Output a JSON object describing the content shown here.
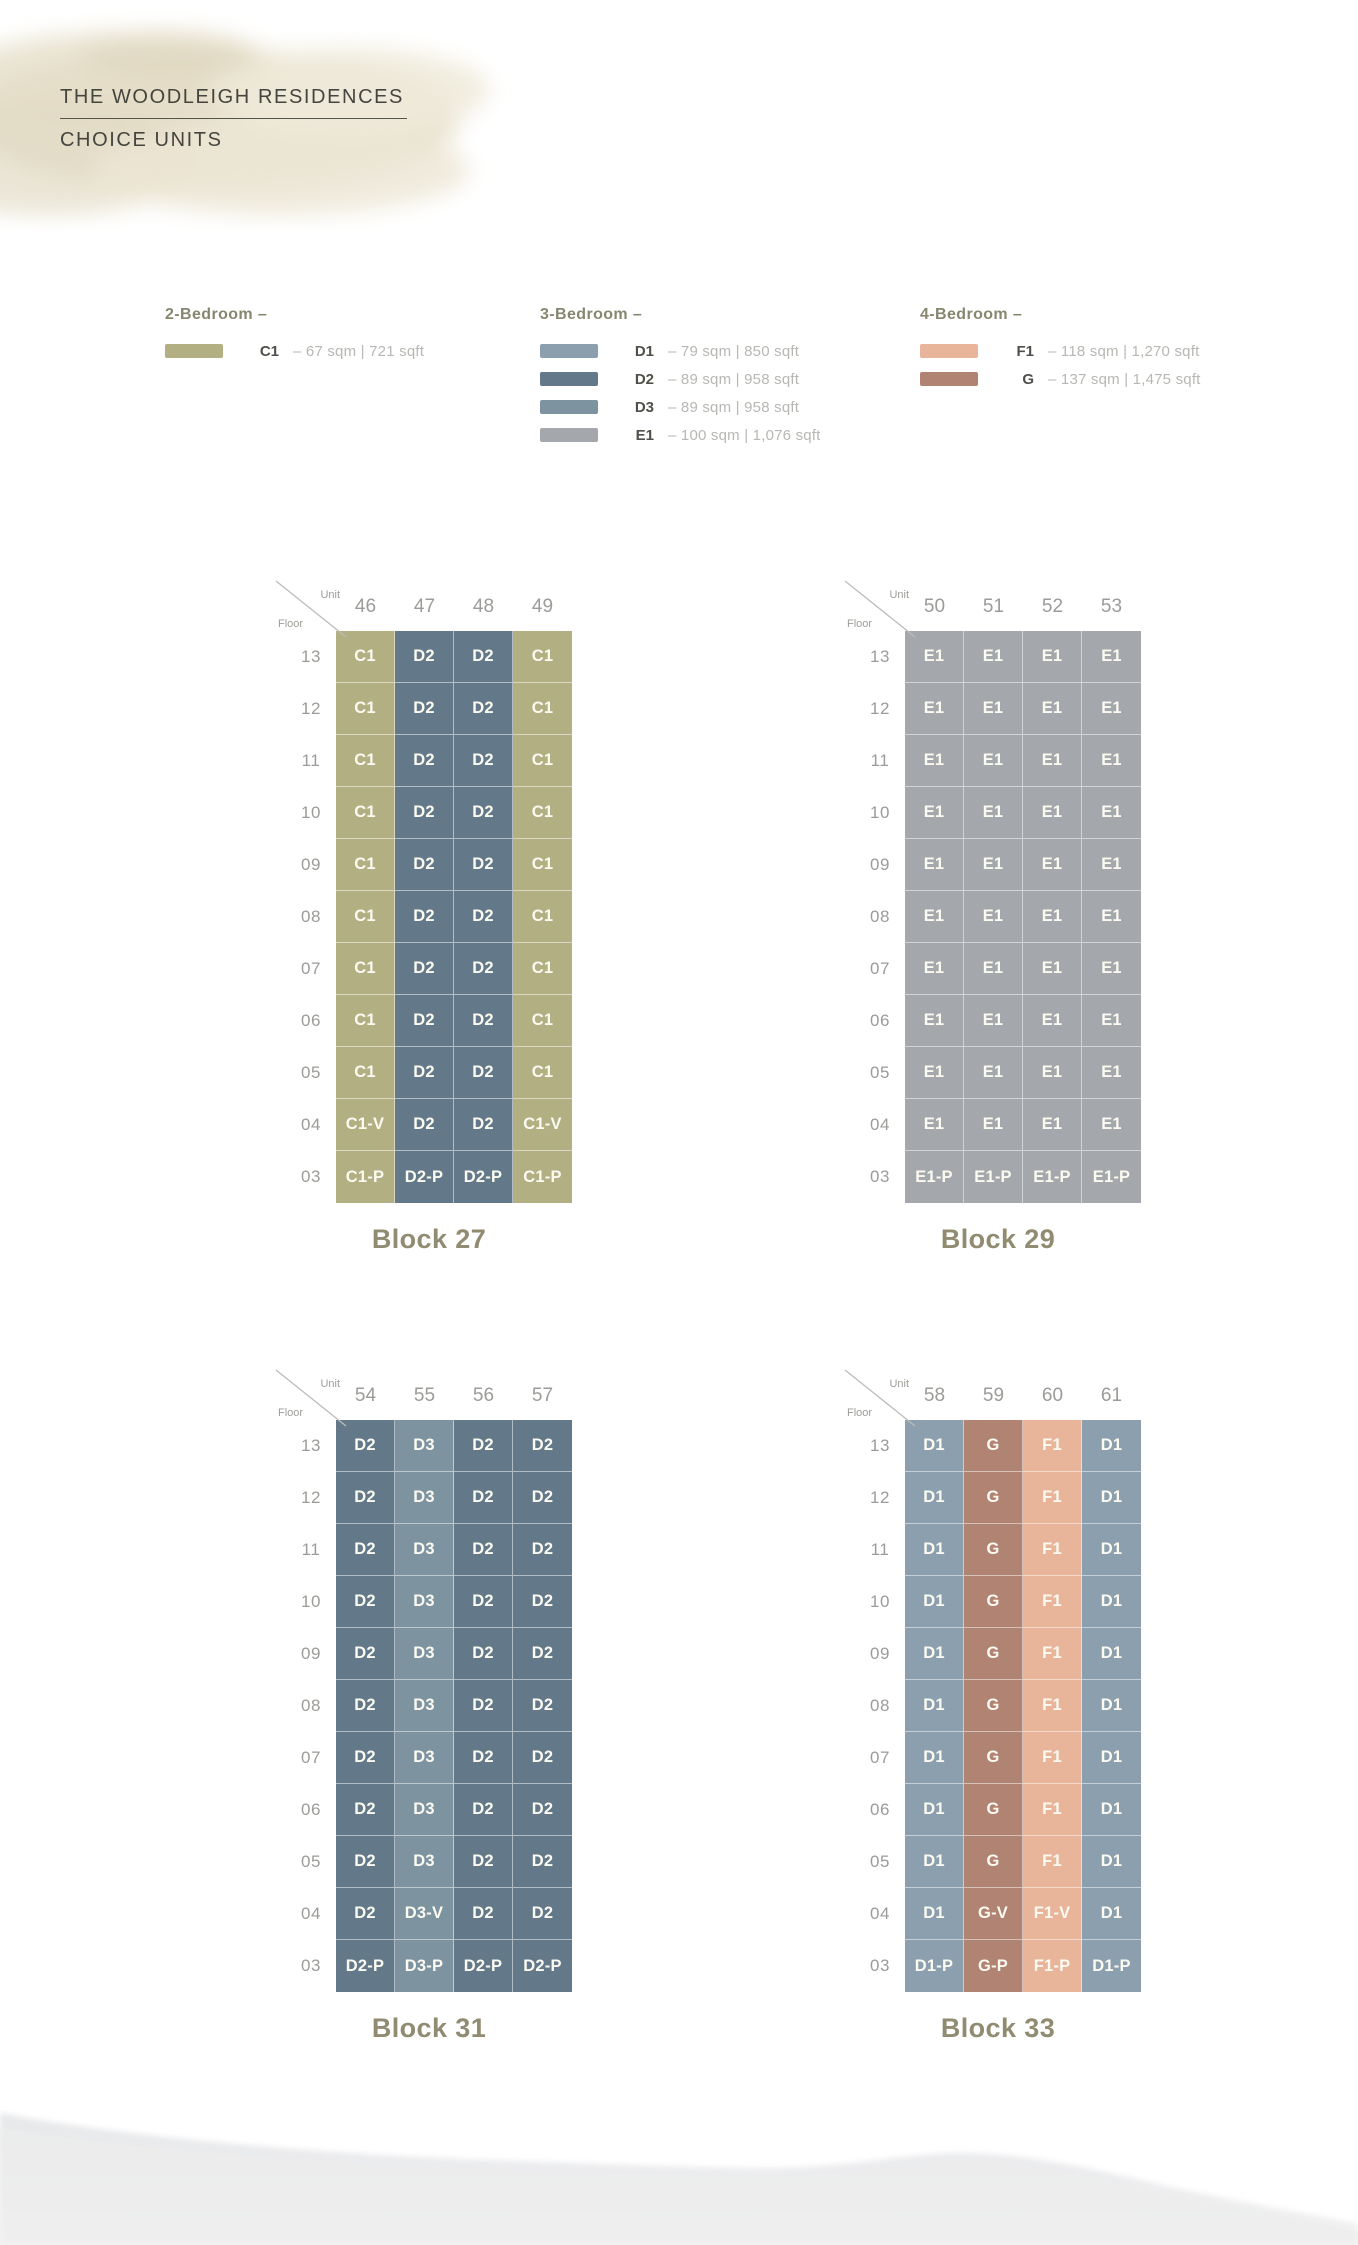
{
  "header": {
    "title": "THE WOODLEIGH RESIDENCES",
    "subtitle": "CHOICE UNITS"
  },
  "axis": {
    "unit_label": "Unit",
    "floor_label": "Floor"
  },
  "legend": [
    {
      "group": "2-Bedroom –",
      "items": [
        {
          "code": "C1",
          "size": "– 67 sqm | 721 sqft",
          "color": "#b2af83"
        }
      ]
    },
    {
      "group": "3-Bedroom –",
      "items": [
        {
          "code": "D1",
          "size": "– 79 sqm | 850 sqft",
          "color": "#8b9fae"
        },
        {
          "code": "D2",
          "size": "– 89 sqm | 958 sqft",
          "color": "#63798a"
        },
        {
          "code": "D3",
          "size": "– 89 sqm | 958 sqft",
          "color": "#7e93a0"
        },
        {
          "code": "E1",
          "size": "– 100 sqm | 1,076 sqft",
          "color": "#a4a7ab"
        }
      ]
    },
    {
      "group": "4-Bedroom –",
      "items": [
        {
          "code": "F1",
          "size": "– 118 sqm | 1,270 sqft",
          "color": "#e8b59b"
        },
        {
          "code": "G",
          "size": "– 137 sqm | 1,475 sqft",
          "color": "#b18372"
        }
      ]
    }
  ],
  "unit_colors": {
    "C1": "#b2af83",
    "D1": "#8b9fae",
    "D2": "#63798a",
    "D3": "#7e93a0",
    "E1": "#a4a7ab",
    "F1": "#e8b59b",
    "G": "#b18372"
  },
  "floors": [
    "13",
    "12",
    "11",
    "10",
    "09",
    "08",
    "07",
    "06",
    "05",
    "04",
    "03"
  ],
  "blocks": [
    {
      "title": "Block 27",
      "units": [
        "46",
        "47",
        "48",
        "49"
      ],
      "rows": [
        [
          "C1",
          "D2",
          "D2",
          "C1"
        ],
        [
          "C1",
          "D2",
          "D2",
          "C1"
        ],
        [
          "C1",
          "D2",
          "D2",
          "C1"
        ],
        [
          "C1",
          "D2",
          "D2",
          "C1"
        ],
        [
          "C1",
          "D2",
          "D2",
          "C1"
        ],
        [
          "C1",
          "D2",
          "D2",
          "C1"
        ],
        [
          "C1",
          "D2",
          "D2",
          "C1"
        ],
        [
          "C1",
          "D2",
          "D2",
          "C1"
        ],
        [
          "C1",
          "D2",
          "D2",
          "C1"
        ],
        [
          "C1-V",
          "D2",
          "D2",
          "C1-V"
        ],
        [
          "C1-P",
          "D2-P",
          "D2-P",
          "C1-P"
        ]
      ]
    },
    {
      "title": "Block 29",
      "units": [
        "50",
        "51",
        "52",
        "53"
      ],
      "rows": [
        [
          "E1",
          "E1",
          "E1",
          "E1"
        ],
        [
          "E1",
          "E1",
          "E1",
          "E1"
        ],
        [
          "E1",
          "E1",
          "E1",
          "E1"
        ],
        [
          "E1",
          "E1",
          "E1",
          "E1"
        ],
        [
          "E1",
          "E1",
          "E1",
          "E1"
        ],
        [
          "E1",
          "E1",
          "E1",
          "E1"
        ],
        [
          "E1",
          "E1",
          "E1",
          "E1"
        ],
        [
          "E1",
          "E1",
          "E1",
          "E1"
        ],
        [
          "E1",
          "E1",
          "E1",
          "E1"
        ],
        [
          "E1",
          "E1",
          "E1",
          "E1"
        ],
        [
          "E1-P",
          "E1-P",
          "E1-P",
          "E1-P"
        ]
      ]
    },
    {
      "title": "Block 31",
      "units": [
        "54",
        "55",
        "56",
        "57"
      ],
      "rows": [
        [
          "D2",
          "D3",
          "D2",
          "D2"
        ],
        [
          "D2",
          "D3",
          "D2",
          "D2"
        ],
        [
          "D2",
          "D3",
          "D2",
          "D2"
        ],
        [
          "D2",
          "D3",
          "D2",
          "D2"
        ],
        [
          "D2",
          "D3",
          "D2",
          "D2"
        ],
        [
          "D2",
          "D3",
          "D2",
          "D2"
        ],
        [
          "D2",
          "D3",
          "D2",
          "D2"
        ],
        [
          "D2",
          "D3",
          "D2",
          "D2"
        ],
        [
          "D2",
          "D3",
          "D2",
          "D2"
        ],
        [
          "D2",
          "D3-V",
          "D2",
          "D2"
        ],
        [
          "D2-P",
          "D3-P",
          "D2-P",
          "D2-P"
        ]
      ]
    },
    {
      "title": "Block 33",
      "units": [
        "58",
        "59",
        "60",
        "61"
      ],
      "rows": [
        [
          "D1",
          "G",
          "F1",
          "D1"
        ],
        [
          "D1",
          "G",
          "F1",
          "D1"
        ],
        [
          "D1",
          "G",
          "F1",
          "D1"
        ],
        [
          "D1",
          "G",
          "F1",
          "D1"
        ],
        [
          "D1",
          "G",
          "F1",
          "D1"
        ],
        [
          "D1",
          "G",
          "F1",
          "D1"
        ],
        [
          "D1",
          "G",
          "F1",
          "D1"
        ],
        [
          "D1",
          "G",
          "F1",
          "D1"
        ],
        [
          "D1",
          "G",
          "F1",
          "D1"
        ],
        [
          "D1",
          "G-V",
          "F1-V",
          "D1"
        ],
        [
          "D1-P",
          "G-P",
          "F1-P",
          "D1-P"
        ]
      ]
    }
  ]
}
